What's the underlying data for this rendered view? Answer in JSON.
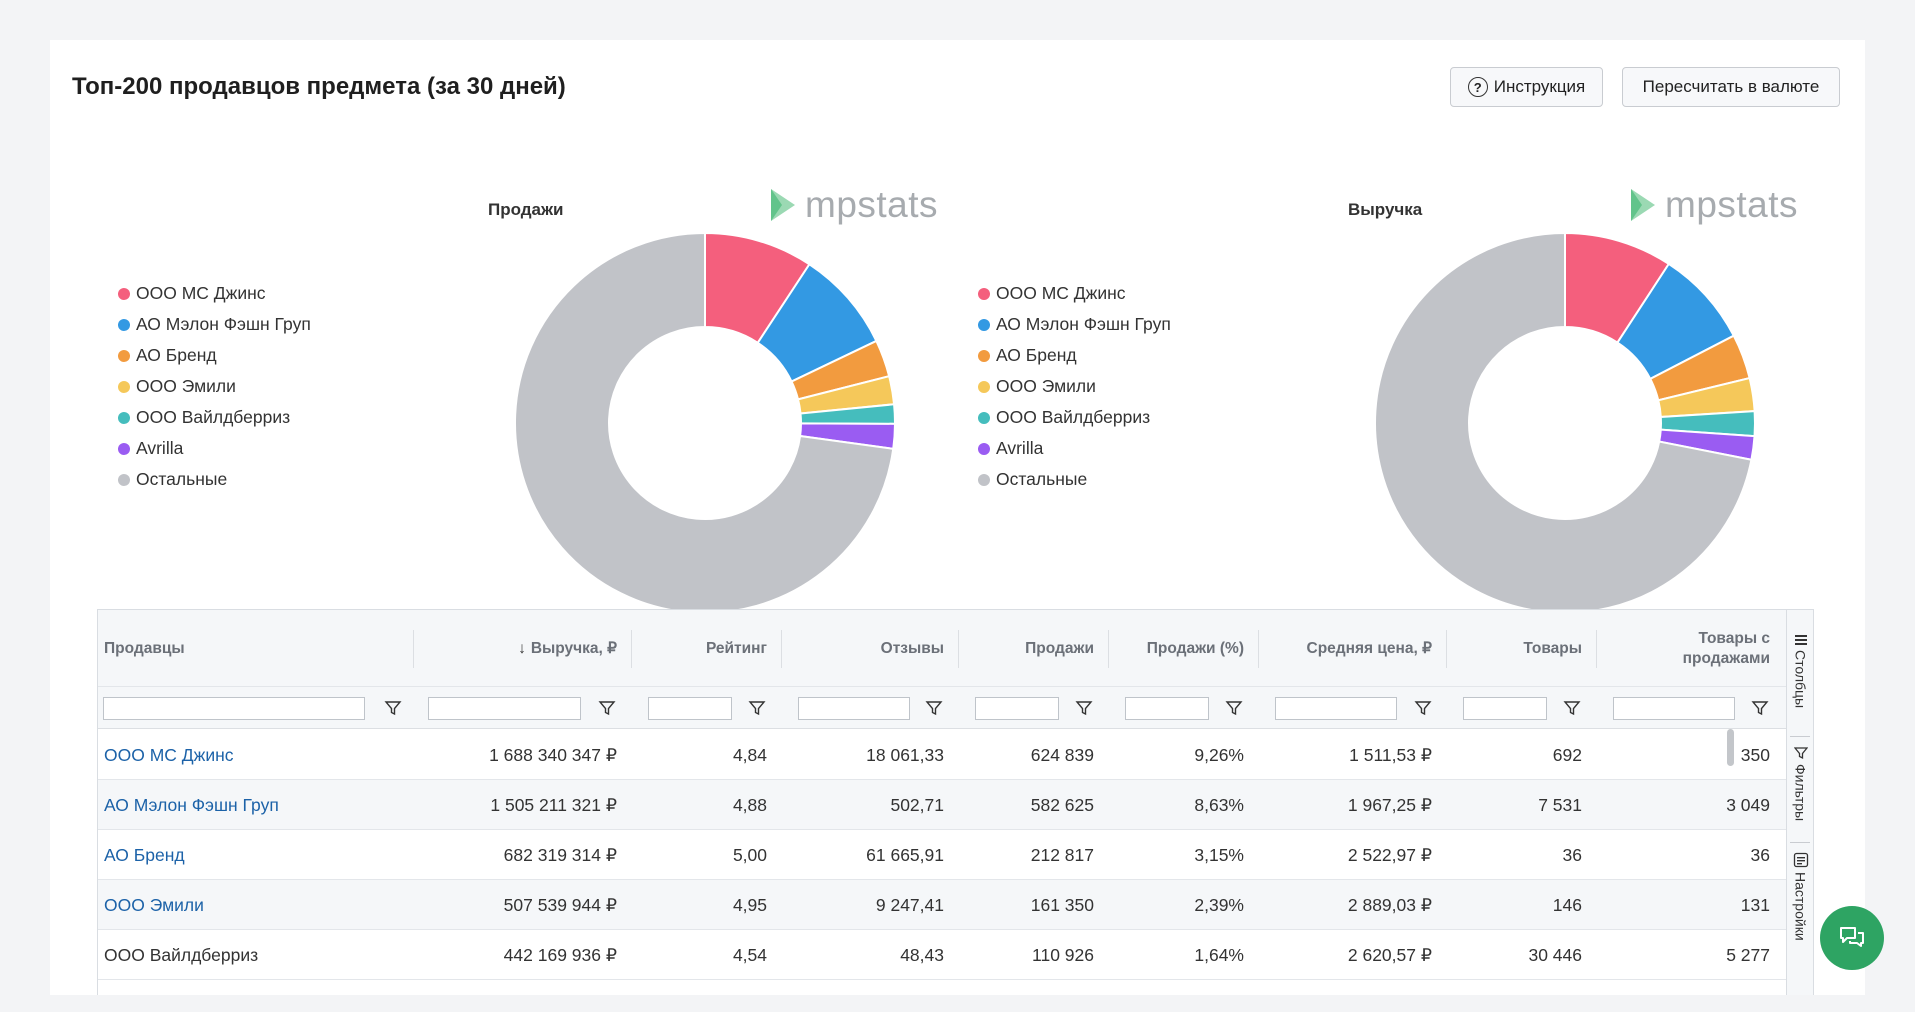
{
  "page": {
    "title": "Топ-200 продавцов предмета (за 30 дней)",
    "help_button": "Инструкция",
    "help_icon": "?",
    "currency_button": "Пересчитать в валюте"
  },
  "watermark": "mpstats",
  "legend": [
    {
      "label": "ООО МС Джинс",
      "color": "#f45f7d"
    },
    {
      "label": "АО Мэлон Фэшн Груп",
      "color": "#3399e3"
    },
    {
      "label": "АО Бренд",
      "color": "#f29b3f"
    },
    {
      "label": "ООО Эмили",
      "color": "#f5c85a"
    },
    {
      "label": "ООО Вайлдберриз",
      "color": "#45bdbd"
    },
    {
      "label": "Avrilla",
      "color": "#9a5cf2"
    },
    {
      "label": "Остальные",
      "color": "#c1c3c8"
    }
  ],
  "chart_data": [
    {
      "type": "pie",
      "title": "Продажи",
      "categories": [
        "ООО МС Джинс",
        "АО Мэлон Фэшн Груп",
        "АО Бренд",
        "ООО Эмили",
        "ООО Вайлдберриз",
        "Avrilla",
        "Остальные"
      ],
      "values": [
        9.26,
        8.63,
        3.15,
        2.39,
        1.64,
        2.1,
        72.83
      ],
      "legend": "left"
    },
    {
      "type": "pie",
      "title": "Выручка",
      "categories": [
        "ООО МС Джинс",
        "АО Мэлон Фэшн Груп",
        "АО Бренд",
        "ООО Эмили",
        "ООО Вайлдберриз",
        "Avrilla",
        "Остальные"
      ],
      "values": [
        9.2,
        8.2,
        3.8,
        2.8,
        2.1,
        2.0,
        71.9
      ],
      "legend": "left"
    }
  ],
  "table": {
    "columns": [
      {
        "label": "Продавцы"
      },
      {
        "label": "Выручка, ₽",
        "sort": "↓"
      },
      {
        "label": "Рейтинг"
      },
      {
        "label": "Отзывы"
      },
      {
        "label": "Продажи"
      },
      {
        "label": "Продажи (%)"
      },
      {
        "label": "Средняя цена, ₽"
      },
      {
        "label": "Товары"
      },
      {
        "label": "Товары с продажами"
      }
    ],
    "rows": [
      {
        "cells": [
          "ООО МС Джинс",
          "1 688 340 347 ₽",
          "4,84",
          "18 061,33",
          "624 839",
          "9,26%",
          "1 511,53 ₽",
          "692",
          "350"
        ],
        "link": true
      },
      {
        "cells": [
          "АО Мэлон Фэшн Груп",
          "1 505 211 321 ₽",
          "4,88",
          "502,71",
          "582 625",
          "8,63%",
          "1 967,25 ₽",
          "7 531",
          "3 049"
        ],
        "link": true
      },
      {
        "cells": [
          "АО Бренд",
          "682 319 314 ₽",
          "5,00",
          "61 665,91",
          "212 817",
          "3,15%",
          "2 522,97 ₽",
          "36",
          "36"
        ],
        "link": true
      },
      {
        "cells": [
          "ООО Эмили",
          "507 539 944 ₽",
          "4,95",
          "9 247,41",
          "161 350",
          "2,39%",
          "2 889,03 ₽",
          "146",
          "131"
        ],
        "link": true
      },
      {
        "cells": [
          "ООО Вайлдберриз",
          "442 169 936 ₽",
          "4,54",
          "48,43",
          "110 926",
          "1,64%",
          "2 620,57 ₽",
          "30 446",
          "5 277"
        ],
        "link": false
      }
    ]
  },
  "side_panel": [
    "Столбцы",
    "Фильтры",
    "Настройки"
  ],
  "colors": {
    "link": "#1c62a8",
    "chat": "#2ea463"
  }
}
